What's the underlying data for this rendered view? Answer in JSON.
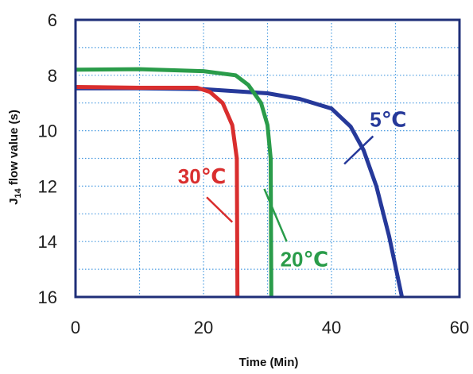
{
  "chart_data": {
    "type": "line",
    "title": "",
    "xlabel": "Time (Min)",
    "ylabel_main": "J",
    "ylabel_sub": "14",
    "ylabel_rest": " flow value (s)",
    "xlim": [
      0,
      60
    ],
    "ylim": [
      6,
      16
    ],
    "y_inverted": true,
    "x_ticks": [
      "0",
      "20",
      "40",
      "60"
    ],
    "y_ticks": [
      "6",
      "8",
      "10",
      "12",
      "14",
      "16"
    ],
    "grid": true,
    "legend": "none",
    "colors": {
      "frame": "#1f2f78",
      "grid": "#4a9be0",
      "5c": "#26399a",
      "20c": "#2a9c4a",
      "30c": "#d92e2e",
      "text": "#1f1f1f"
    },
    "series": [
      {
        "name": "5℃",
        "color_key": "5c",
        "x": [
          0,
          10,
          20,
          30,
          35,
          40,
          43,
          45,
          47,
          49,
          51
        ],
        "y": [
          8.47,
          8.47,
          8.5,
          8.65,
          8.85,
          9.2,
          9.85,
          10.7,
          12.0,
          13.8,
          16.0
        ]
      },
      {
        "name": "20℃",
        "color_key": "20c",
        "x": [
          0,
          10,
          20,
          25,
          27,
          29,
          30,
          30.5,
          30.6
        ],
        "y": [
          7.8,
          7.78,
          7.85,
          8.0,
          8.35,
          9.0,
          9.8,
          11.0,
          16.0
        ]
      },
      {
        "name": "30℃",
        "color_key": "30c",
        "x": [
          0,
          10,
          19,
          21,
          23,
          24.5,
          25.2,
          25.3
        ],
        "y": [
          8.42,
          8.45,
          8.45,
          8.6,
          9.0,
          9.8,
          11.0,
          16.0
        ]
      }
    ],
    "annotations": [
      {
        "text": "5℃",
        "color_key": "5c",
        "label_x": 46,
        "label_y": 9.85,
        "leader_from": [
          46.5,
          10.2
        ],
        "leader_to": [
          42,
          11.2
        ]
      },
      {
        "text": "20℃",
        "color_key": "20c",
        "label_x": 32,
        "label_y": 14.9,
        "leader_from": [
          33,
          14.0
        ],
        "leader_to": [
          29.5,
          12.1
        ]
      },
      {
        "text": "30℃",
        "color_key": "30c",
        "label_x": 16,
        "label_y": 11.9,
        "leader_from": [
          20.5,
          12.4
        ],
        "leader_to": [
          24.5,
          13.3
        ]
      }
    ]
  }
}
